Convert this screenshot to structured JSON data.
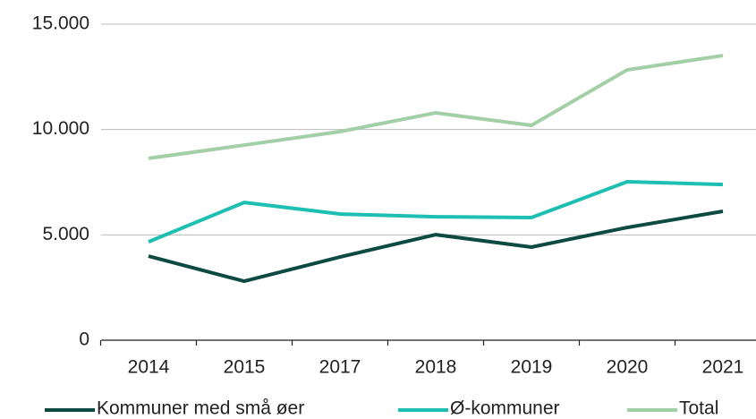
{
  "chart_data": {
    "type": "line",
    "categories": [
      "2014",
      "2015",
      "2017",
      "2018",
      "2019",
      "2020",
      "2021"
    ],
    "series": [
      {
        "name": "Kommuner med små øer",
        "color": "#0d4a42",
        "values": [
          3990,
          2800,
          3950,
          5010,
          4420,
          5350,
          6120
        ]
      },
      {
        "name": "Ø-kommuner",
        "color": "#1cbfb1",
        "values": [
          4670,
          6540,
          5990,
          5860,
          5820,
          7520,
          7390
        ]
      },
      {
        "name": "Total",
        "color": "#a3cfa7",
        "values": [
          8630,
          9260,
          9900,
          10790,
          10200,
          12830,
          13510
        ]
      }
    ],
    "ylim": [
      0,
      15000
    ],
    "yticks": [
      0,
      {
        "value": 5000,
        "label": "5.000"
      },
      {
        "value": 10000,
        "label": "10.000"
      },
      {
        "value": 15000,
        "label": "15.000"
      }
    ],
    "grid": true,
    "legend": "bottom"
  }
}
